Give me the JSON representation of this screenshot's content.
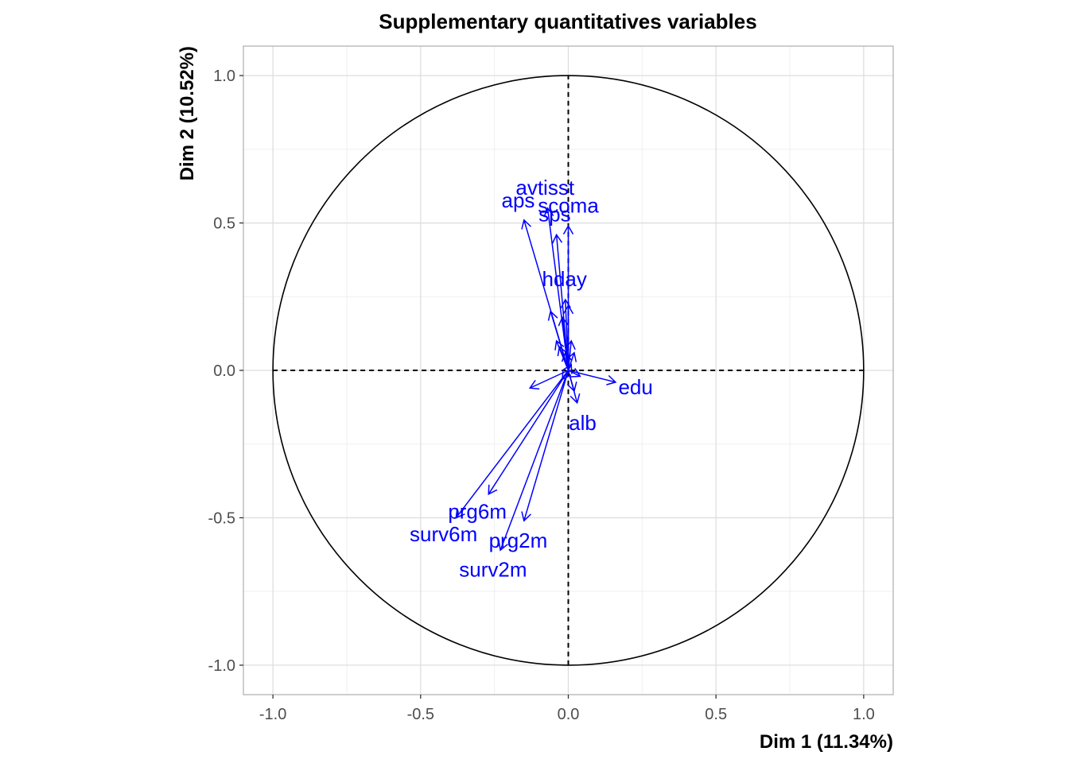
{
  "chart_data": {
    "type": "scatter",
    "subtype": "correlation-circle",
    "title": "Supplementary quantitatives variables",
    "xlabel": "Dim 1 (11.34%)",
    "ylabel": "Dim 2 (10.52%)",
    "xlim": [
      -1.1,
      1.1
    ],
    "ylim": [
      -1.1,
      1.1
    ],
    "xticks": [
      -1.0,
      -0.5,
      0.0,
      0.5,
      1.0
    ],
    "yticks": [
      -1.0,
      -0.5,
      0.0,
      0.5,
      1.0
    ],
    "xtick_labels": [
      "-1.0",
      "-0.5",
      "0.0",
      "0.5",
      "1.0"
    ],
    "ytick_labels": [
      "-1.0",
      "-0.5",
      "0.0",
      "0.5",
      "1.0"
    ],
    "grid": true,
    "reference_lines": "dashed lines at x = 0 and y = 0",
    "unit_circle": true,
    "arrow_color": "#0000ff",
    "arrow_origin": [
      0,
      0
    ],
    "variables": [
      {
        "name": "avtisst",
        "x": -0.07,
        "y": 0.55
      },
      {
        "name": "scoma",
        "x": 0.0,
        "y": 0.49
      },
      {
        "name": "aps",
        "x": -0.15,
        "y": 0.51
      },
      {
        "name": "sps",
        "x": -0.04,
        "y": 0.46
      },
      {
        "name": "hday",
        "x": -0.01,
        "y": 0.24
      },
      {
        "name": "edu",
        "x": 0.16,
        "y": -0.04
      },
      {
        "name": "alb",
        "x": 0.03,
        "y": -0.11
      },
      {
        "name": "prg6m",
        "x": -0.27,
        "y": -0.42
      },
      {
        "name": "surv6m",
        "x": -0.38,
        "y": -0.5
      },
      {
        "name": "prg2m",
        "x": -0.15,
        "y": -0.51
      },
      {
        "name": "surv2m",
        "x": -0.23,
        "y": -0.61
      }
    ],
    "unlabeled_arrows": [
      {
        "x": -0.06,
        "y": 0.2
      },
      {
        "x": 0.0,
        "y": 0.22
      },
      {
        "x": -0.02,
        "y": 0.18
      },
      {
        "x": -0.04,
        "y": 0.1
      },
      {
        "x": -0.03,
        "y": 0.08
      },
      {
        "x": 0.01,
        "y": 0.1
      },
      {
        "x": 0.02,
        "y": 0.06
      },
      {
        "x": -0.01,
        "y": 0.06
      },
      {
        "x": -0.13,
        "y": -0.06
      },
      {
        "x": 0.02,
        "y": -0.07
      },
      {
        "x": 0.04,
        "y": -0.02
      },
      {
        "x": -0.02,
        "y": -0.03
      },
      {
        "x": 0.01,
        "y": 0.02
      }
    ]
  }
}
